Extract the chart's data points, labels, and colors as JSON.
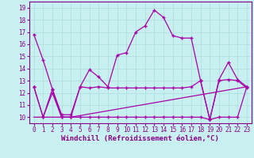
{
  "xlabel": "Windchill (Refroidissement éolien,°C)",
  "ylabel": "",
  "background_color": "#c8f0f0",
  "grid_color": "#aadddd",
  "line_color": "#aa00aa",
  "xlim": [
    -0.5,
    23.5
  ],
  "ylim": [
    9.5,
    19.5
  ],
  "xticks": [
    0,
    1,
    2,
    3,
    4,
    5,
    6,
    7,
    8,
    9,
    10,
    11,
    12,
    13,
    14,
    15,
    16,
    17,
    18,
    19,
    20,
    21,
    22,
    23
  ],
  "yticks": [
    10,
    11,
    12,
    13,
    14,
    15,
    16,
    17,
    18,
    19
  ],
  "series1_x": [
    0,
    1,
    2,
    3,
    4,
    5,
    6,
    7,
    8,
    9,
    10,
    11,
    12,
    13,
    14,
    15,
    16,
    17,
    18,
    19,
    20,
    21,
    22,
    23
  ],
  "series1_y": [
    16.8,
    14.7,
    12.3,
    10.0,
    10.0,
    12.5,
    13.9,
    13.3,
    12.5,
    15.1,
    15.3,
    17.0,
    17.5,
    18.8,
    18.2,
    16.7,
    16.5,
    16.5,
    13.0,
    9.8,
    13.1,
    14.5,
    13.1,
    12.5
  ],
  "series2_x": [
    0,
    1,
    2,
    3,
    4,
    5,
    6,
    7,
    8,
    9,
    10,
    11,
    12,
    13,
    14,
    15,
    16,
    17,
    18,
    19,
    20,
    21,
    22,
    23
  ],
  "series2_y": [
    12.5,
    10.0,
    12.0,
    10.0,
    10.0,
    10.0,
    10.0,
    10.0,
    10.0,
    10.0,
    10.0,
    10.0,
    10.0,
    10.0,
    10.0,
    10.0,
    10.0,
    10.0,
    10.0,
    9.8,
    10.0,
    10.0,
    10.0,
    12.5
  ],
  "series3_x": [
    0,
    1,
    2,
    3,
    4,
    5,
    6,
    7,
    8,
    9,
    10,
    11,
    12,
    13,
    14,
    15,
    16,
    17,
    18,
    19,
    20,
    21,
    22,
    23
  ],
  "series3_y": [
    12.5,
    10.0,
    12.3,
    10.2,
    10.2,
    12.5,
    12.4,
    12.5,
    12.4,
    12.4,
    12.4,
    12.4,
    12.4,
    12.4,
    12.4,
    12.4,
    12.4,
    12.5,
    13.0,
    9.8,
    13.0,
    13.1,
    13.0,
    12.4
  ],
  "series4_x": [
    0,
    4,
    23
  ],
  "series4_y": [
    10.0,
    10.0,
    12.5
  ],
  "marker": "+",
  "marker_size": 3,
  "linewidth": 0.9,
  "tick_fontsize": 5.5,
  "label_fontsize": 6.5
}
